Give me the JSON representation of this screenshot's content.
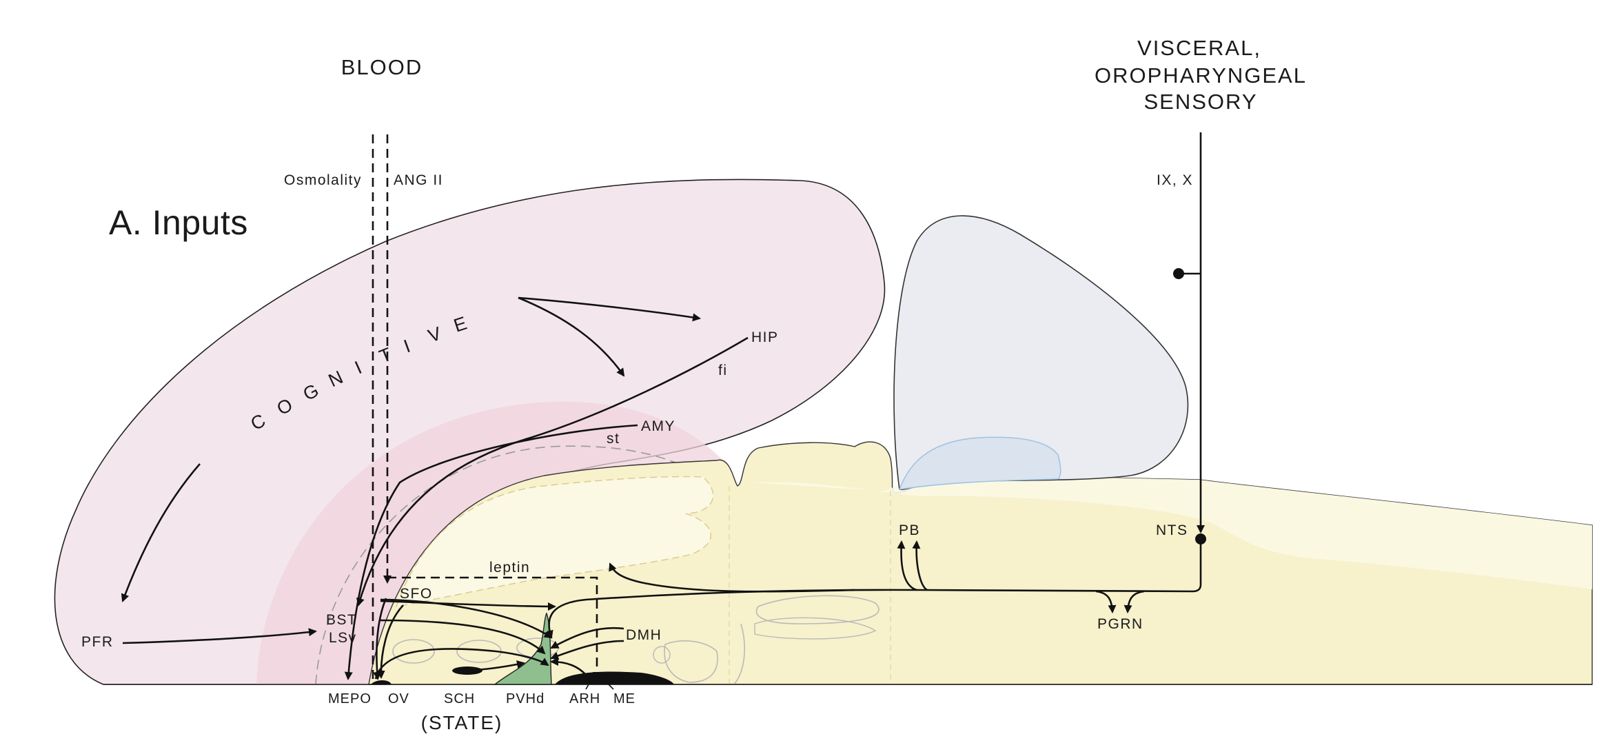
{
  "title": "A. Inputs",
  "inputs": {
    "blood": "BLOOD",
    "visceral": [
      "VISCERAL,",
      "OROPHARYNGEAL",
      "SENSORY"
    ],
    "osmolality": "Osmolality",
    "ang2": "ANG II",
    "ixx": "IX, X",
    "leptin": "leptin"
  },
  "cognitive": [
    "C",
    "O",
    "G",
    "N",
    "I",
    "T",
    "I",
    "V",
    "E"
  ],
  "regions": {
    "hip": "HIP",
    "fi": "fi",
    "amy": "AMY",
    "st": "st",
    "pfr": "PFR",
    "bst": "BST",
    "lsv": "LSv",
    "sfo": "SFO",
    "dmh": "DMH",
    "pb": "PB",
    "nts": "NTS",
    "pgrn": "PGRN"
  },
  "bottom_labels": [
    "MEPO",
    "OV",
    "SCH",
    "PVHd",
    "ARH",
    "ME"
  ],
  "state": "(STATE)",
  "colors": {
    "cortex": "#f3e6ec",
    "cortex_outline": "#222222",
    "inner_pink": "#f0d3dd",
    "brainstem": "#f7f1cc",
    "brainstem_light": "#fbf8e4",
    "cerebellum": "#eaecf1",
    "cerebellum_blue": "#dbe3ee",
    "pvh": "#8fbf8f",
    "ink": "#111111"
  }
}
